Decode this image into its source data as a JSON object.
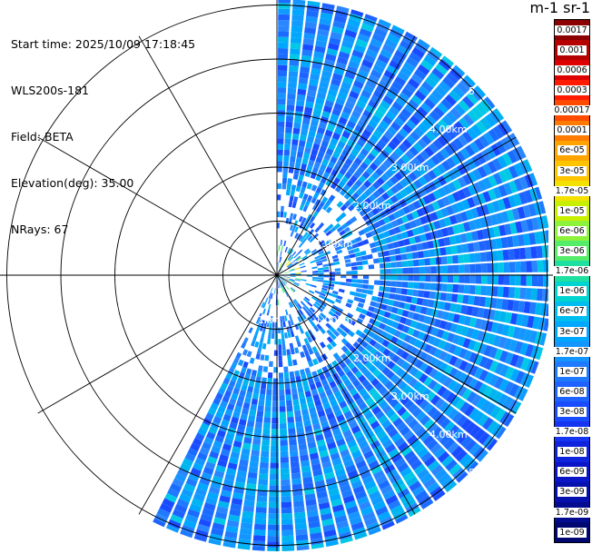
{
  "info": {
    "start_time": "Start time: 2025/10/09 17:18:45",
    "instrument": "WLS200s-181",
    "field": "Field: BETA",
    "elevation": "Elevation(deg): 35.00",
    "nrays": "NRays: 67"
  },
  "colorbar": {
    "title": "m-1 sr-1",
    "labels": [
      "0.0017",
      "0.001",
      "0.0006",
      "0.0003",
      "0.00017",
      "0.0001",
      "6e-05",
      "3e-05",
      "1.7e-05",
      "1e-05",
      "6e-06",
      "3e-06",
      "1.7e-06",
      "1e-06",
      "6e-07",
      "3e-07",
      "1.7e-07",
      "1e-07",
      "6e-08",
      "3e-08",
      "1.7e-08",
      "1e-08",
      "6e-09",
      "3e-09",
      "1.7e-09",
      "1e-09"
    ],
    "colors": [
      "#8b0000",
      "#b40000",
      "#dc0000",
      "#ff1a00",
      "#ff4b00",
      "#ff7a00",
      "#ffa300",
      "#ffc400",
      "#f5e100",
      "#c9ef00",
      "#8df33a",
      "#55ec6a",
      "#1fe0a0",
      "#00d4d0",
      "#00bdf0",
      "#00a7ff",
      "#1595ff",
      "#1f7aff",
      "#1e63ff",
      "#1a4cff",
      "#1535f0",
      "#0f22dc",
      "#0a15c8",
      "#0610ac",
      "#030b8e",
      "#000770"
    ]
  },
  "range_rings": {
    "upper_labels": [
      "1.00km",
      "2.00km",
      "3.00km",
      "4.00km",
      "5"
    ],
    "lower_labels": [
      "1km",
      "1.00km",
      "2.00km",
      "3.00km",
      "4.00km",
      "5"
    ]
  }
}
